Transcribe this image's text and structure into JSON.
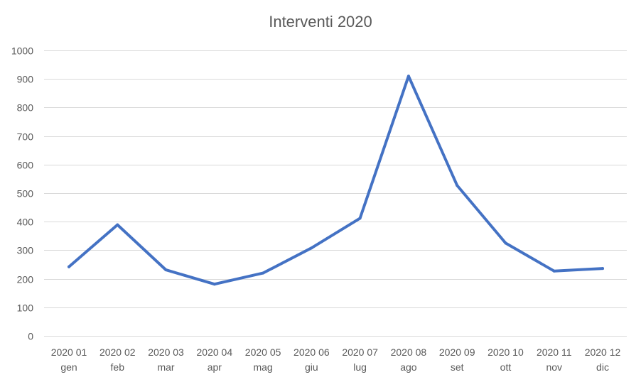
{
  "chart_data": {
    "type": "line",
    "title": "Interventi 2020",
    "xlabel": "",
    "ylabel": "",
    "categories": [
      [
        "2020 01",
        "gen"
      ],
      [
        "2020 02",
        "feb"
      ],
      [
        "2020 03",
        "mar"
      ],
      [
        "2020 04",
        "apr"
      ],
      [
        "2020 05",
        "mag"
      ],
      [
        "2020 06",
        "giu"
      ],
      [
        "2020 07",
        "lug"
      ],
      [
        "2020 08",
        "ago"
      ],
      [
        "2020 09",
        "set"
      ],
      [
        "2020 10",
        "ott"
      ],
      [
        "2020 11",
        "nov"
      ],
      [
        "2020 12",
        "dic"
      ]
    ],
    "series": [
      {
        "values": [
          242,
          389,
          231,
          181,
          220,
          308,
          412,
          910,
          527,
          325,
          227,
          236
        ],
        "color": "#4472c4"
      }
    ],
    "ylim": [
      0,
      1000
    ],
    "yticks": [
      0,
      100,
      200,
      300,
      400,
      500,
      600,
      700,
      800,
      900,
      1000
    ],
    "grid": true,
    "legend": "none"
  }
}
